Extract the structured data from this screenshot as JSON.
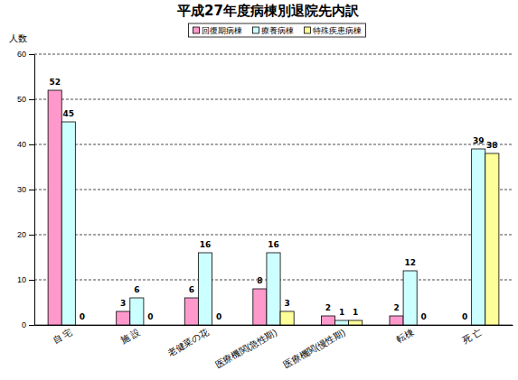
{
  "chart_data": {
    "type": "bar",
    "title": "平成27年度病棟別退院先内訳",
    "y_label": "人数",
    "categories": [
      "自 宅",
      "施 設",
      "老健菜の花",
      "医療機関(急性期)",
      "医療機関(慢性期)",
      "転棟",
      "死 亡"
    ],
    "series": [
      {
        "name": "回復期病棟",
        "color": "#ff99cc",
        "values": [
          52,
          3,
          6,
          8,
          2,
          2,
          0
        ]
      },
      {
        "name": "療養病棟",
        "color": "#ccffff",
        "values": [
          45,
          6,
          16,
          16,
          1,
          12,
          39
        ]
      },
      {
        "name": "特殊疾患病棟",
        "color": "#ffff99",
        "values": [
          0,
          0,
          0,
          3,
          1,
          0,
          38
        ]
      }
    ],
    "ylim": [
      0,
      60
    ],
    "yticks": [
      0,
      10,
      20,
      30,
      40,
      50,
      60
    ],
    "grid": true,
    "legend": "top",
    "data_labels": true
  }
}
